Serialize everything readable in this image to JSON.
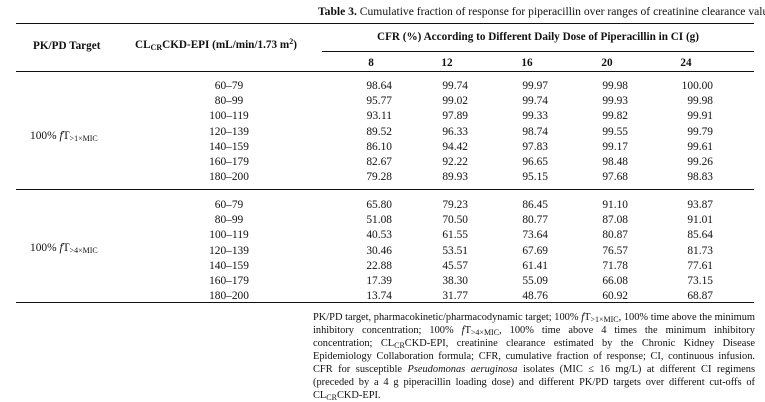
{
  "caption": {
    "label": "Table 3.",
    "text": "Cumulative fraction of response for piperacillin over ranges of creatinine clearance values."
  },
  "header": {
    "col1": "PK/PD Target",
    "col2_pre": "CL",
    "col2_sub": "CR",
    "col2_mid": "CKD-EPI (mL/min/1.73 m",
    "col2_sup": "2",
    "col2_post": ")",
    "group": "CFR (%) According to Different Daily Dose of Piperacillin in CI (g)",
    "doses": [
      "8",
      "12",
      "16",
      "20",
      "24"
    ]
  },
  "groups": [
    {
      "target_pre": "100% ",
      "target_f": "f",
      "target_T": "T",
      "target_sub": ">1×MIC",
      "rows": [
        {
          "range": "60–79",
          "v": [
            "98.64",
            "99.74",
            "99.97",
            "99.98",
            "100.00"
          ]
        },
        {
          "range": "80–99",
          "v": [
            "95.77",
            "99.02",
            "99.74",
            "99.93",
            "99.98"
          ]
        },
        {
          "range": "100–119",
          "v": [
            "93.11",
            "97.89",
            "99.33",
            "99.82",
            "99.91"
          ]
        },
        {
          "range": "120–139",
          "v": [
            "89.52",
            "96.33",
            "98.74",
            "99.55",
            "99.79"
          ]
        },
        {
          "range": "140–159",
          "v": [
            "86.10",
            "94.42",
            "97.83",
            "99.17",
            "99.61"
          ]
        },
        {
          "range": "160–179",
          "v": [
            "82.67",
            "92.22",
            "96.65",
            "98.48",
            "99.26"
          ]
        },
        {
          "range": "180–200",
          "v": [
            "79.28",
            "89.93",
            "95.15",
            "97.68",
            "98.83"
          ]
        }
      ]
    },
    {
      "target_pre": "100% ",
      "target_f": "f",
      "target_T": "T",
      "target_sub": ">4×MIC",
      "rows": [
        {
          "range": "60–79",
          "v": [
            "65.80",
            "79.23",
            "86.45",
            "91.10",
            "93.87"
          ]
        },
        {
          "range": "80–99",
          "v": [
            "51.08",
            "70.50",
            "80.77",
            "87.08",
            "91.01"
          ]
        },
        {
          "range": "100–119",
          "v": [
            "40.53",
            "61.55",
            "73.64",
            "80.87",
            "85.64"
          ]
        },
        {
          "range": "120–139",
          "v": [
            "30.46",
            "53.51",
            "67.69",
            "76.57",
            "81.73"
          ]
        },
        {
          "range": "140–159",
          "v": [
            "22.88",
            "45.57",
            "61.41",
            "71.78",
            "77.61"
          ]
        },
        {
          "range": "160–179",
          "v": [
            "17.39",
            "38.30",
            "55.09",
            "66.08",
            "73.15"
          ]
        },
        {
          "range": "180–200",
          "v": [
            "13.74",
            "31.77",
            "48.76",
            "60.92",
            "68.87"
          ]
        }
      ]
    }
  ],
  "footnote": {
    "p1": "PK/PD target, pharmacokinetic/pharmacodynamic target; 100% ",
    "f1": "f",
    "T1": "T",
    "s1": ">1×MIC",
    "p2": ", 100% time above the minimum inhibitory concentration; 100% ",
    "f2": "f",
    "T2": "T",
    "s2": ">4×MIC",
    "p3": ", 100% time above 4 times the minimum inhibitory concentration; CL",
    "s3": "CR",
    "p4": "CKD-EPI, creatinine clearance estimated by the Chronic Kidney Disease Epidemiology Collaboration formula; CFR, cumulative fraction of response; CI, continuous infusion. CFR for susceptible ",
    "org": "Pseudomonas aeruginosa",
    "p5": " isolates (MIC ≤ 16 mg/L) at different CI regimens (preceded by a 4 g piperacillin loading dose) and different PK/PD targets over different cut-offs of CL",
    "s4": "CR",
    "p6": "CKD-EPI."
  }
}
